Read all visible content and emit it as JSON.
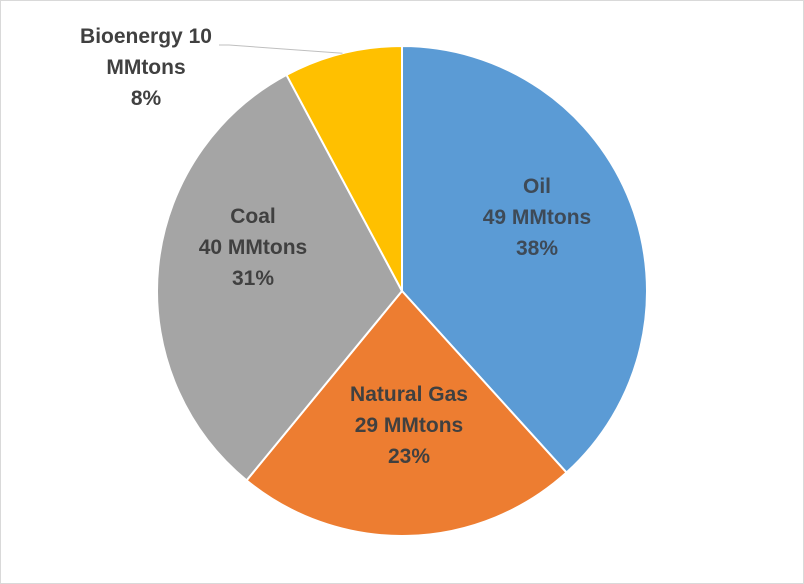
{
  "chart_data": {
    "type": "pie",
    "title": "",
    "unit": "MMtons",
    "slices": [
      {
        "name": "Oil",
        "value": 49,
        "percent": 38,
        "color": "#5b9bd5",
        "label_lines": [
          "Oil",
          "49 MMtons",
          "38%"
        ],
        "label_color": "#3e4a57"
      },
      {
        "name": "Natural Gas",
        "value": 29,
        "percent": 23,
        "color": "#ed7d31",
        "label_lines": [
          "Natural Gas",
          "29 MMtons",
          "23%"
        ],
        "label_color": "#404040"
      },
      {
        "name": "Coal",
        "value": 40,
        "percent": 31,
        "color": "#a5a5a5",
        "label_lines": [
          "Coal",
          "40 MMtons",
          "31%"
        ],
        "label_color": "#404040"
      },
      {
        "name": "Bioenergy",
        "value": 10,
        "percent": 8,
        "color": "#ffc000",
        "label_lines": [
          "Bioenergy 10",
          "MMtons",
          "8%"
        ],
        "label_color": "#404040",
        "label_outside": true
      }
    ]
  }
}
